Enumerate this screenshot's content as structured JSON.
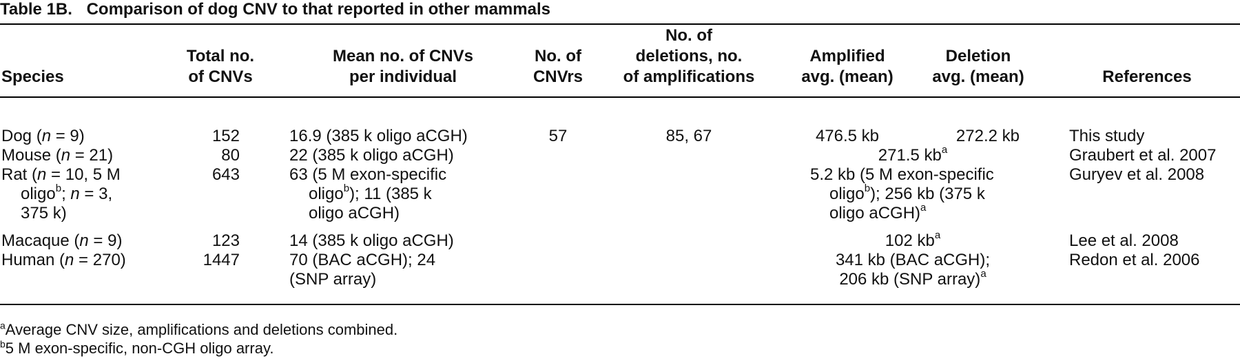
{
  "caption": {
    "label": "Table 1B.",
    "title": "Comparison of dog CNV to that reported in other mammals"
  },
  "headers": {
    "species": [
      "Species"
    ],
    "total": [
      "Total no.",
      "of CNVs"
    ],
    "mean": [
      "Mean no. of CNVs",
      "per individual"
    ],
    "cnvrs": [
      "No. of",
      "CNVrs"
    ],
    "dels": [
      "No. of",
      "deletions, no.",
      "of amplifications"
    ],
    "amp": [
      "Amplified",
      "avg. (mean)"
    ],
    "del": [
      "Deletion",
      "avg. (mean)"
    ],
    "refs": [
      "References"
    ]
  },
  "rows": {
    "dog": {
      "species_name": "Dog (",
      "n": "n",
      "species_rest": " = 9)",
      "total": "152",
      "mean": "16.9 (385 k oligo aCGH)",
      "cnvrs": "57",
      "dels": "85, 67",
      "amp": "476.5 kb",
      "del": "272.2 kb",
      "ref": "This study"
    },
    "mouse": {
      "species_name": "Mouse (",
      "n": "n",
      "species_rest": " = 21)",
      "total": "80",
      "mean": "22 (385 k oligo aCGH)",
      "combined": "271.5 kb",
      "combined_sup": "a",
      "ref": "Graubert et al. 2007"
    },
    "rat": {
      "species_name": "Rat (",
      "n": "n",
      "species_rest": " = 10, 5 M",
      "species_l2a": "oligo",
      "species_l2sup": "b",
      "species_l2b": "; ",
      "n2": "n",
      "species_l2c": " = 3,",
      "species_l3": "375 k)",
      "total": "643",
      "mean_l1": "63 (5 M exon-specific",
      "mean_l2a": "oligo",
      "mean_l2sup": "b",
      "mean_l2b": "); 11 (385 k",
      "mean_l3": "oligo aCGH)",
      "comb_l1": "5.2 kb (5 M exon-specific",
      "comb_l2a": "oligo",
      "comb_l2sup": "b",
      "comb_l2b": "); 256 kb (375 k",
      "comb_l3": "oligo aCGH)",
      "comb_l3sup": "a",
      "ref": "Guryev et al. 2008"
    },
    "macaque": {
      "species_name": "Macaque (",
      "n": "n",
      "species_rest": " = 9)",
      "total": "123",
      "mean": "14 (385 k oligo aCGH)",
      "combined": "102 kb",
      "combined_sup": "a",
      "ref": "Lee et al. 2008"
    },
    "human": {
      "species_name": "Human (",
      "n": "n",
      "species_rest": " = 270)",
      "total": "1447",
      "mean_l1": "70 (BAC aCGH); 24",
      "mean_l2": "(SNP array)",
      "comb_l1": "341 kb (BAC aCGH);",
      "comb_l2": "206 kb (SNP array)",
      "comb_l2sup": "a",
      "ref": "Redon et al. 2006"
    }
  },
  "footnotes": {
    "a_mark": "a",
    "a_text": "Average CNV size, amplifications and deletions combined.",
    "b_mark": "b",
    "b_text": "5 M exon-specific, non-CGH oligo array."
  }
}
